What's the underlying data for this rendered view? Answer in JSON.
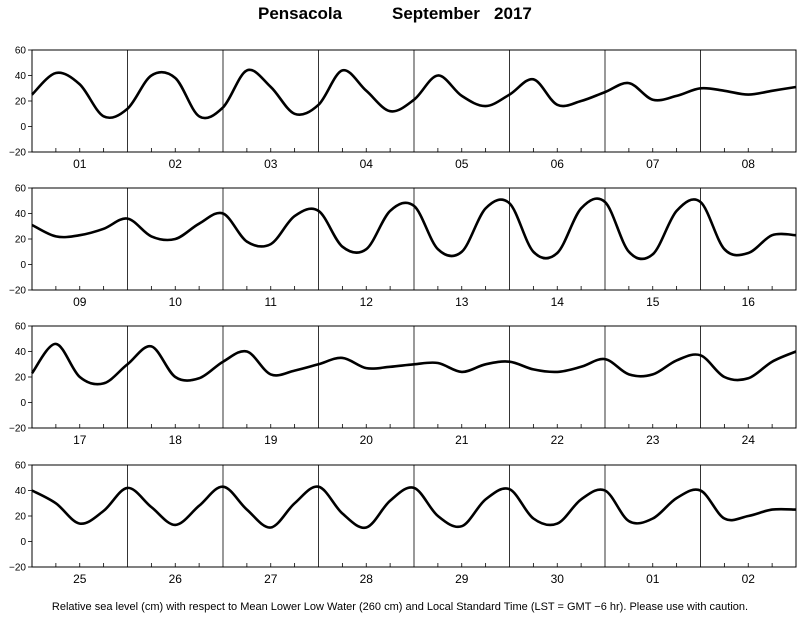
{
  "title": {
    "station": "Pensacola",
    "period": "September   2017"
  },
  "caption": "Relative sea level (cm) with respect to Mean Lower Low Water (260 cm) and Local Standard Time (LST = GMT −6 hr). Please use with caution.",
  "chart_data": {
    "type": "line",
    "ylim": [
      -20,
      60
    ],
    "yticks": [
      -20,
      0,
      20,
      40,
      60
    ],
    "yticklabels": [
      "−20",
      "0",
      "20",
      "40",
      "60"
    ],
    "grid": "vertical day boundaries",
    "line_color": "#000000",
    "panels": [
      {
        "day_labels": [
          "01",
          "02",
          "03",
          "04",
          "05",
          "06",
          "07",
          "08"
        ],
        "hours": [
          0,
          6,
          12,
          18,
          24,
          30,
          36,
          42,
          48,
          54,
          60,
          66,
          72,
          78,
          84,
          90,
          96,
          102,
          108,
          114,
          120,
          126,
          132,
          138,
          144,
          150,
          156,
          162,
          168,
          174,
          180,
          186,
          192
        ],
        "values": [
          25,
          42,
          33,
          8,
          14,
          40,
          38,
          8,
          15,
          44,
          31,
          10,
          17,
          44,
          28,
          12,
          21,
          40,
          24,
          16,
          25,
          37,
          17,
          20,
          27,
          34,
          21,
          24,
          30,
          28,
          25,
          28,
          31
        ]
      },
      {
        "day_labels": [
          "09",
          "10",
          "11",
          "12",
          "13",
          "14",
          "15",
          "16"
        ],
        "hours": [
          0,
          6,
          12,
          18,
          24,
          30,
          36,
          42,
          48,
          54,
          60,
          66,
          72,
          78,
          84,
          90,
          96,
          102,
          108,
          114,
          120,
          126,
          132,
          138,
          144,
          150,
          156,
          162,
          168,
          174,
          180,
          186,
          192
        ],
        "values": [
          31,
          22,
          23,
          28,
          36,
          22,
          20,
          32,
          40,
          18,
          16,
          38,
          42,
          14,
          12,
          42,
          46,
          12,
          10,
          44,
          48,
          10,
          9,
          44,
          49,
          10,
          8,
          42,
          49,
          12,
          9,
          23,
          23
        ]
      },
      {
        "day_labels": [
          "17",
          "18",
          "19",
          "20",
          "21",
          "22",
          "23",
          "24"
        ],
        "hours": [
          0,
          6,
          12,
          18,
          24,
          30,
          36,
          42,
          48,
          54,
          60,
          66,
          72,
          78,
          84,
          90,
          96,
          102,
          108,
          114,
          120,
          126,
          132,
          138,
          144,
          150,
          156,
          162,
          168,
          174,
          180,
          186,
          192
        ],
        "values": [
          23,
          46,
          20,
          15,
          30,
          44,
          20,
          19,
          32,
          40,
          22,
          25,
          30,
          35,
          27,
          28,
          30,
          31,
          24,
          30,
          32,
          26,
          24,
          28,
          34,
          22,
          22,
          33,
          37,
          20,
          19,
          32,
          40
        ]
      },
      {
        "day_labels": [
          "25",
          "26",
          "27",
          "28",
          "29",
          "30",
          "01",
          "02"
        ],
        "hours": [
          0,
          6,
          12,
          18,
          24,
          30,
          36,
          42,
          48,
          54,
          60,
          66,
          72,
          78,
          84,
          90,
          96,
          102,
          108,
          114,
          120,
          126,
          132,
          138,
          144,
          150,
          156,
          162,
          168,
          174,
          180,
          186,
          192
        ],
        "values": [
          40,
          30,
          14,
          24,
          42,
          27,
          13,
          28,
          43,
          25,
          11,
          30,
          43,
          22,
          11,
          32,
          42,
          20,
          12,
          33,
          41,
          18,
          14,
          33,
          40,
          16,
          18,
          34,
          40,
          18,
          20,
          25,
          25
        ]
      }
    ]
  }
}
